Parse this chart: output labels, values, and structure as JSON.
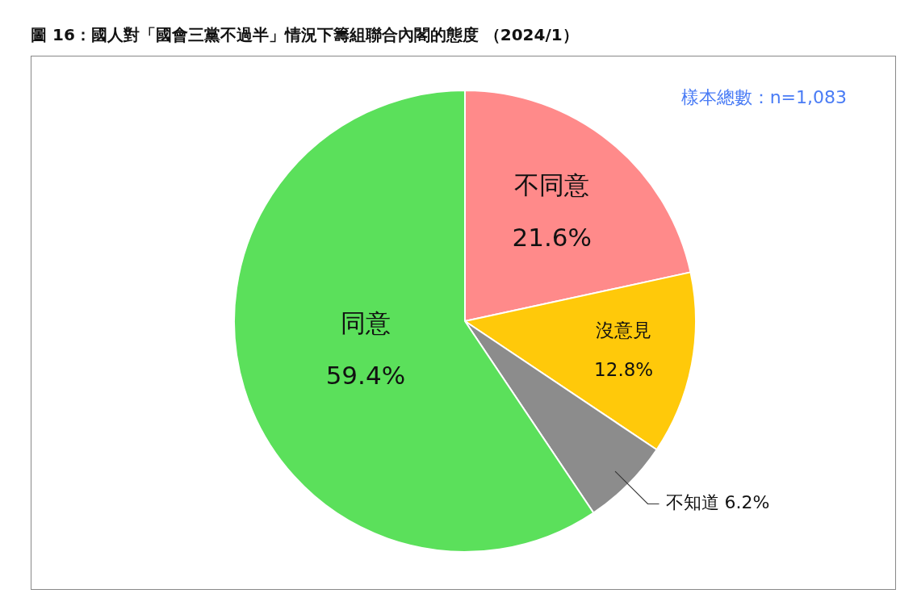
{
  "chart_data": {
    "type": "pie",
    "title": "圖 16：國人對「國會三黨不過半」情況下籌組聯合內閣的態度 （2024/1）",
    "categories": [
      "不同意",
      "沒意見",
      "不知道",
      "同意"
    ],
    "values": [
      21.6,
      12.8,
      6.2,
      59.4
    ],
    "value_labels": [
      "21.6%",
      "12.8%",
      "6.2%",
      "59.4%"
    ],
    "colors": [
      "#ff8a8a",
      "#ffc90a",
      "#8c8c8c",
      "#5be05b"
    ],
    "legend": false,
    "annotations": [
      "樣本總數：n=1,083"
    ]
  }
}
